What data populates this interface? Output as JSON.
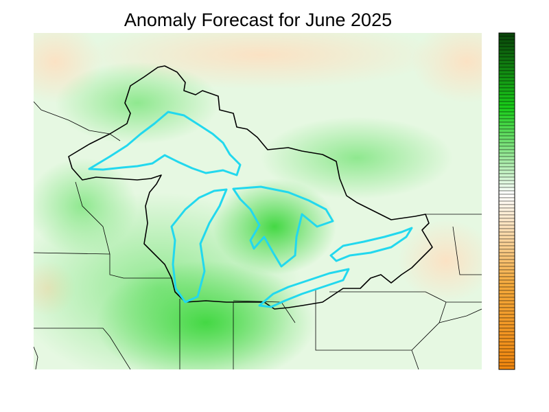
{
  "title": "Anomaly Forecast for June 2025"
}
